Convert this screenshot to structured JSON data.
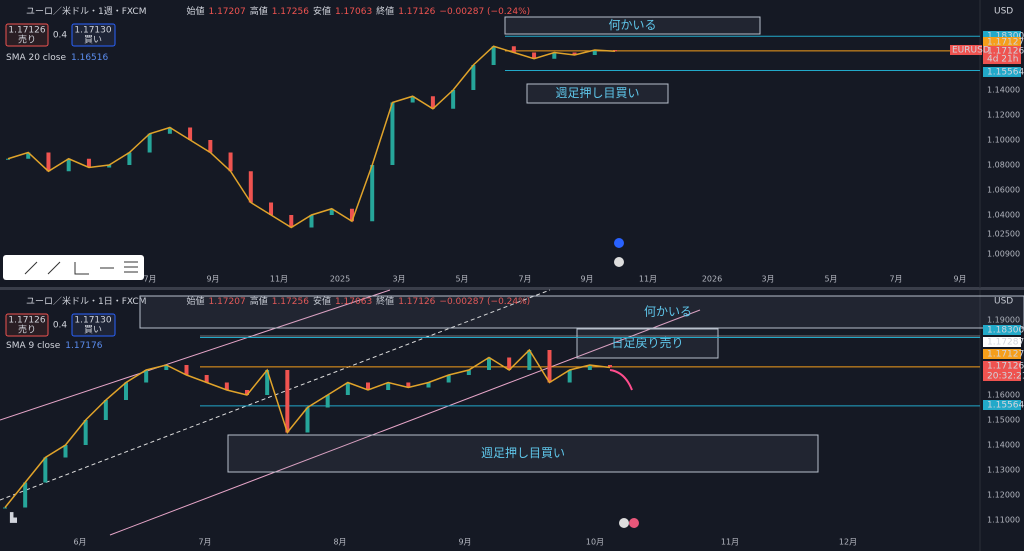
{
  "top": {
    "header": {
      "symbol": "ユーロ／米ドル・1週・FXCM",
      "open_label": "始値",
      "open": "1.17207",
      "high_label": "高値",
      "high": "1.17256",
      "low_label": "安値",
      "low": "1.17063",
      "close_label": "終値",
      "close": "1.17126",
      "change": "−0.00287 (−0.24%)"
    },
    "trade": {
      "sell_price": "1.17126",
      "sell": "売り",
      "spread": "0.4",
      "buy_price": "1.17130",
      "buy": "買い"
    },
    "indicator": {
      "name": "SMA 20 close",
      "value": "1.16516"
    },
    "currency": "USD",
    "symbol_tag": "EURUSD",
    "price_axis": [
      "1.14000",
      "1.12000",
      "1.10000",
      "1.08000",
      "1.06000",
      "1.04000",
      "1.02500",
      "1.00900"
    ],
    "tags": [
      "1.18300",
      "1.17127",
      "1.17126",
      "1.15564"
    ],
    "countdown": "4d 21h",
    "time_axis": [
      "7月",
      "9月",
      "11月",
      "2025",
      "3月",
      "5月",
      "7月",
      "9月",
      "11月",
      "2026",
      "3月",
      "5月",
      "7月",
      "9月"
    ],
    "annotations": [
      "何かいる",
      "週足押し目買い"
    ],
    "closes": [
      1.085,
      1.09,
      1.075,
      1.085,
      1.078,
      1.08,
      1.09,
      1.105,
      1.11,
      1.1,
      1.09,
      1.075,
      1.05,
      1.04,
      1.03,
      1.04,
      1.045,
      1.035,
      1.08,
      1.13,
      1.135,
      1.125,
      1.14,
      1.16,
      1.175,
      1.17,
      1.165,
      1.17,
      1.168,
      1.172,
      1.171
    ]
  },
  "bottom": {
    "header": {
      "symbol": "ユーロ／米ドル・1日・FXCM",
      "open_label": "始値",
      "open": "1.17207",
      "high_label": "高値",
      "high": "1.17256",
      "low_label": "安値",
      "low": "1.17063",
      "close_label": "終値",
      "close": "1.17126",
      "change": "−0.00287 (−0.24%)"
    },
    "trade": {
      "sell_price": "1.17126",
      "sell": "売り",
      "spread": "0.4",
      "buy_price": "1.17130",
      "buy": "買い"
    },
    "indicator": {
      "name": "SMA 9 close",
      "value": "1.17176"
    },
    "currency": "USD",
    "price_axis": [
      "1.19000",
      "1.16000",
      "1.15000",
      "1.14000",
      "1.13000",
      "1.12000",
      "1.11000"
    ],
    "tags": [
      "1.18300",
      "1.17287",
      "1.17127",
      "1.17126",
      "1.15564"
    ],
    "countdown": "20:32:21",
    "time_axis": [
      "6月",
      "7月",
      "8月",
      "9月",
      "10月",
      "11月",
      "12月"
    ],
    "annotations": [
      "何かいる",
      "日足戻り売り",
      "週足押し目買い"
    ],
    "closes": [
      1.115,
      1.125,
      1.135,
      1.14,
      1.15,
      1.158,
      1.165,
      1.17,
      1.172,
      1.168,
      1.165,
      1.162,
      1.16,
      1.17,
      1.145,
      1.155,
      1.16,
      1.165,
      1.162,
      1.165,
      1.163,
      1.165,
      1.168,
      1.17,
      1.175,
      1.17,
      1.178,
      1.165,
      1.17,
      1.172,
      1.171
    ]
  }
}
